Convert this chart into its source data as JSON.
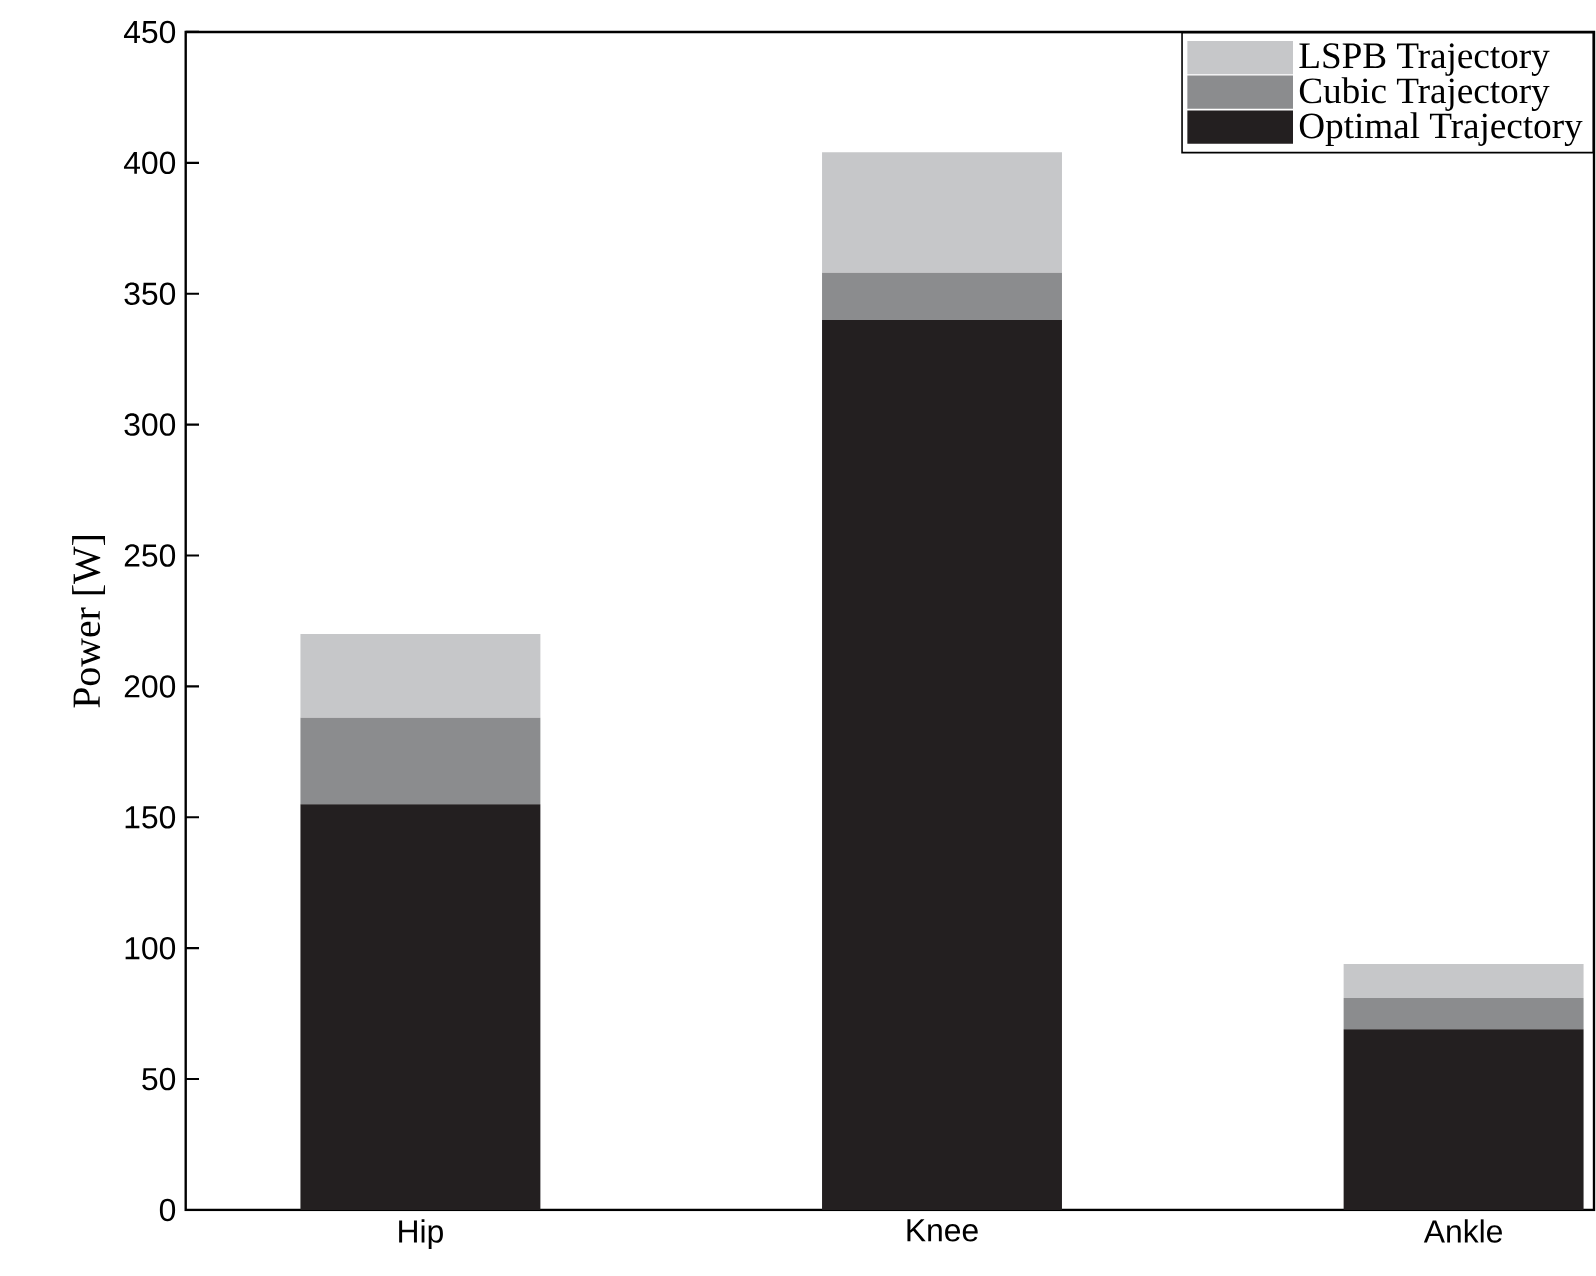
{
  "chart_data": {
    "type": "bar",
    "stacked": true,
    "ylabel": "Power [W]",
    "categories": [
      "Hip",
      "Knee",
      "Ankle"
    ],
    "series": [
      {
        "name": "Optimal Trajectory",
        "color": "#231f20",
        "values": [
          155,
          340,
          69
        ]
      },
      {
        "name": "Cubic Trajectory",
        "color": "#8b8c8e",
        "values": [
          33,
          18,
          12
        ]
      },
      {
        "name": "LSPB Trajectory",
        "color": "#c6c7c9",
        "values": [
          32,
          46,
          13
        ]
      }
    ],
    "ylim": [
      0,
      450
    ],
    "yticks": [
      0,
      50,
      100,
      150,
      200,
      250,
      300,
      350,
      400,
      450
    ],
    "legend": "top right",
    "grid": false
  }
}
